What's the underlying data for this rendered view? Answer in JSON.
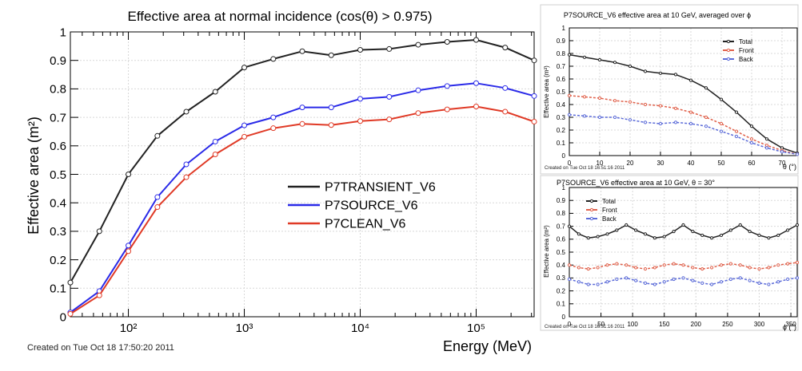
{
  "chart_data": [
    {
      "type": "line",
      "title": "Effective area at normal incidence (cos(θ) > 0.975)",
      "xlabel": "Energy (MeV)",
      "ylabel": "Effective area (m²)",
      "xscale": "log",
      "xlim": [
        31.6,
        316228
      ],
      "ylim": [
        0,
        1.0
      ],
      "x_tick_labels": [
        "10²",
        "10³",
        "10⁴",
        "10⁵"
      ],
      "x_tick_values": [
        100,
        1000,
        10000,
        100000
      ],
      "y_tick_labels": [
        "0",
        "0.1",
        "0.2",
        "0.3",
        "0.4",
        "0.5",
        "0.6",
        "0.7",
        "0.8",
        "0.9",
        "1"
      ],
      "y_tick_values": [
        0,
        0.1,
        0.2,
        0.3,
        0.4,
        0.5,
        0.6,
        0.7,
        0.8,
        0.9,
        1.0
      ],
      "legend_position": "center-right",
      "footer": "Created on Tue Oct 18 17:50:20 2011",
      "x": [
        31.6,
        56.2,
        100,
        178,
        316,
        562,
        1000,
        1778,
        3162,
        5623,
        10000,
        17783,
        31623,
        56234,
        100000,
        177828,
        316228
      ],
      "series": [
        {
          "name": "P7TRANSIENT_V6",
          "color": "#222222",
          "values": [
            0.12,
            0.3,
            0.5,
            0.635,
            0.72,
            0.79,
            0.875,
            0.905,
            0.932,
            0.918,
            0.937,
            0.94,
            0.955,
            0.965,
            0.972,
            0.945,
            0.9
          ]
        },
        {
          "name": "P7SOURCE_V6",
          "color": "#2a2ae8",
          "values": [
            0.015,
            0.09,
            0.25,
            0.42,
            0.535,
            0.615,
            0.672,
            0.7,
            0.735,
            0.735,
            0.765,
            0.772,
            0.795,
            0.81,
            0.82,
            0.803,
            0.775
          ]
        },
        {
          "name": "P7CLEAN_V6",
          "color": "#e03a26",
          "values": [
            0.01,
            0.075,
            0.23,
            0.385,
            0.49,
            0.57,
            0.632,
            0.662,
            0.677,
            0.673,
            0.687,
            0.693,
            0.715,
            0.728,
            0.738,
            0.72,
            0.685
          ]
        }
      ]
    },
    {
      "type": "line",
      "title": "P7SOURCE_V6 effective area at 10 GeV, averaged over ϕ",
      "xlabel": "θ (°)",
      "ylabel": "Effective area (m²)",
      "xlim": [
        0,
        75
      ],
      "ylim": [
        0,
        1.0
      ],
      "x_tick_labels": [
        "0",
        "10",
        "20",
        "30",
        "40",
        "50",
        "60",
        "70"
      ],
      "x_tick_values": [
        0,
        10,
        20,
        30,
        40,
        50,
        60,
        70
      ],
      "y_tick_labels": [
        "0",
        "0.1",
        "0.2",
        "0.3",
        "0.4",
        "0.5",
        "0.6",
        "0.7",
        "0.8",
        "0.9",
        "1"
      ],
      "y_tick_values": [
        0,
        0.1,
        0.2,
        0.3,
        0.4,
        0.5,
        0.6,
        0.7,
        0.8,
        0.9,
        1.0
      ],
      "legend_position": "top-right",
      "footer": "Created on Tue Oct 18 16:51:16 2011",
      "x": [
        0,
        5,
        10,
        15,
        20,
        25,
        30,
        35,
        40,
        45,
        50,
        55,
        60,
        65,
        70,
        75
      ],
      "series": [
        {
          "name": "Total",
          "color": "#222222",
          "values": [
            0.79,
            0.77,
            0.75,
            0.73,
            0.7,
            0.66,
            0.645,
            0.635,
            0.59,
            0.53,
            0.44,
            0.34,
            0.23,
            0.13,
            0.06,
            0.02
          ]
        },
        {
          "name": "Front",
          "color": "#e0604a",
          "values": [
            0.47,
            0.46,
            0.45,
            0.43,
            0.42,
            0.4,
            0.39,
            0.37,
            0.34,
            0.3,
            0.25,
            0.19,
            0.13,
            0.08,
            0.04,
            0.01
          ]
        },
        {
          "name": "Back",
          "color": "#5a6ad8",
          "values": [
            0.32,
            0.31,
            0.3,
            0.3,
            0.28,
            0.26,
            0.25,
            0.26,
            0.25,
            0.23,
            0.19,
            0.15,
            0.1,
            0.06,
            0.03,
            0.01
          ]
        }
      ]
    },
    {
      "type": "line",
      "title": "P7SOURCE_V6 effective area at 10 GeV, θ = 30°",
      "xlabel": "ϕ (°)",
      "ylabel": "Effective area (m²)",
      "xlim": [
        0,
        360
      ],
      "ylim": [
        0,
        1.0
      ],
      "x_tick_labels": [
        "0",
        "50",
        "100",
        "150",
        "200",
        "250",
        "300",
        "350"
      ],
      "x_tick_values": [
        0,
        50,
        100,
        150,
        200,
        250,
        300,
        350
      ],
      "y_tick_labels": [
        "0",
        "0.1",
        "0.2",
        "0.3",
        "0.4",
        "0.5",
        "0.6",
        "0.7",
        "0.8",
        "0.9",
        "1"
      ],
      "y_tick_values": [
        0,
        0.1,
        0.2,
        0.3,
        0.4,
        0.5,
        0.6,
        0.7,
        0.8,
        0.9,
        1.0
      ],
      "legend_position": "top-left",
      "footer": "Created on Tue Oct 18 16:51:16 2011",
      "x": [
        0,
        15,
        30,
        45,
        60,
        75,
        90,
        105,
        120,
        135,
        150,
        165,
        180,
        195,
        210,
        225,
        240,
        255,
        270,
        285,
        300,
        315,
        330,
        345,
        360
      ],
      "series": [
        {
          "name": "Total",
          "color": "#222222",
          "values": [
            0.7,
            0.64,
            0.61,
            0.62,
            0.64,
            0.67,
            0.71,
            0.67,
            0.64,
            0.61,
            0.62,
            0.66,
            0.71,
            0.66,
            0.63,
            0.61,
            0.63,
            0.67,
            0.71,
            0.66,
            0.63,
            0.61,
            0.63,
            0.67,
            0.71
          ]
        },
        {
          "name": "Front",
          "color": "#e0604a",
          "values": [
            0.4,
            0.38,
            0.37,
            0.38,
            0.4,
            0.41,
            0.4,
            0.38,
            0.37,
            0.38,
            0.4,
            0.41,
            0.4,
            0.38,
            0.37,
            0.38,
            0.4,
            0.41,
            0.4,
            0.38,
            0.37,
            0.38,
            0.4,
            0.41,
            0.42
          ]
        },
        {
          "name": "Back",
          "color": "#5a6ad8",
          "values": [
            0.29,
            0.27,
            0.25,
            0.25,
            0.27,
            0.29,
            0.3,
            0.28,
            0.26,
            0.25,
            0.27,
            0.29,
            0.3,
            0.28,
            0.26,
            0.25,
            0.27,
            0.29,
            0.3,
            0.28,
            0.26,
            0.25,
            0.27,
            0.29,
            0.3
          ]
        }
      ]
    }
  ]
}
